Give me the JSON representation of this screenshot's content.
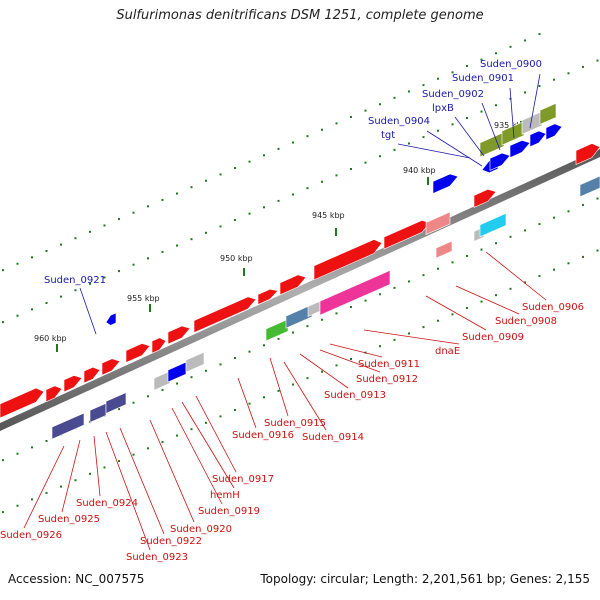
{
  "title": "Sulfurimonas denitrificans DSM 1251, complete genome",
  "footer": {
    "accession": "Accession: NC_007575",
    "summary": "Topology: circular; Length: 2,201,561 bp; Genes: 2,155"
  },
  "colors": {
    "backbone": "#7a7a7a",
    "forward_gene": "#ee1111",
    "reverse_gene": "#0000ee",
    "olive_gene": "#7f9a28",
    "slate_gene": "#4a4a90",
    "steel_gene": "#5580aa",
    "magenta_gene": "#ee3399",
    "green_gene": "#44bb33",
    "cyan_gene": "#22ccee",
    "pink_gene": "#ee8888",
    "gray_gene": "#bbbbbb",
    "tick": "#1f7a1f",
    "label_blue": "#1a1aa8",
    "label_red": "#cc1111"
  },
  "scale": {
    "ticks": [
      {
        "label": "935 kbp"
      },
      {
        "label": "940 kbp"
      },
      {
        "label": "945 kbp"
      },
      {
        "label": "950 kbp"
      },
      {
        "label": "955 kbp"
      },
      {
        "label": "960 kbp"
      }
    ]
  },
  "genes_top": [
    {
      "name": "Suden_0900"
    },
    {
      "name": "Suden_0901"
    },
    {
      "name": "Suden_0902"
    },
    {
      "name": "lpxB"
    },
    {
      "name": "Suden_0904"
    },
    {
      "name": "tgt"
    },
    {
      "name": "Suden_0921"
    }
  ],
  "genes_bottom": [
    {
      "name": "Suden_0906"
    },
    {
      "name": "Suden_0908"
    },
    {
      "name": "Suden_0909"
    },
    {
      "name": "dnaE"
    },
    {
      "name": "Suden_0911"
    },
    {
      "name": "Suden_0912"
    },
    {
      "name": "Suden_0913"
    },
    {
      "name": "Suden_0914"
    },
    {
      "name": "Suden_0915"
    },
    {
      "name": "Suden_0916"
    },
    {
      "name": "Suden_0917"
    },
    {
      "name": "hemH"
    },
    {
      "name": "Suden_0919"
    },
    {
      "name": "Suden_0920"
    },
    {
      "name": "Suden_0922"
    },
    {
      "name": "Suden_0923"
    },
    {
      "name": "Suden_0924"
    },
    {
      "name": "Suden_0925"
    },
    {
      "name": "Suden_0926"
    }
  ]
}
